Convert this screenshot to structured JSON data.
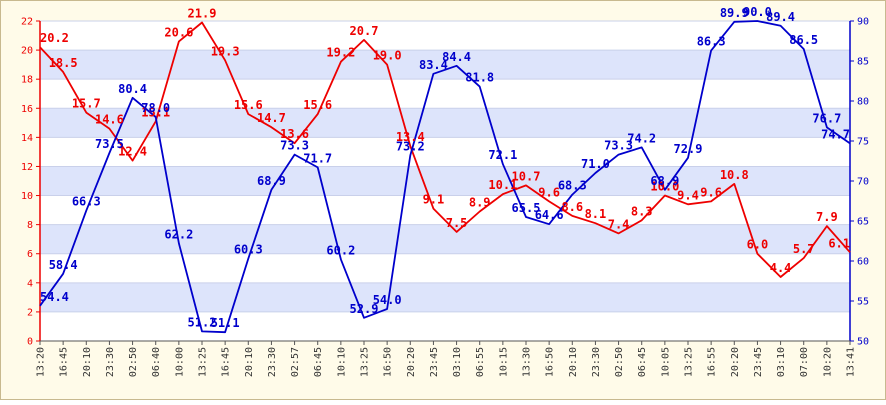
{
  "chart_data": {
    "type": "line",
    "title": "",
    "grid": true,
    "background_bands": [
      "#ffffff",
      "#dde4fb"
    ],
    "x": [
      "13:20",
      "16:45",
      "20:10",
      "23:30",
      "02:50",
      "06:40",
      "10:00",
      "13:25",
      "16:45",
      "20:10",
      "23:30",
      "02:57",
      "06:45",
      "10:10",
      "13:25",
      "16:50",
      "20:20",
      "23:45",
      "03:10",
      "06:55",
      "10:15",
      "13:30",
      "16:50",
      "20:10",
      "23:30",
      "02:50",
      "06:45",
      "10:05",
      "13:25",
      "16:55",
      "20:20",
      "23:45",
      "03:10",
      "07:00",
      "10:20",
      "13:41"
    ],
    "axes": {
      "left": {
        "ylim": [
          0,
          22
        ],
        "ticks": [
          "0",
          "2",
          "4",
          "6",
          "8",
          "10",
          "12",
          "14",
          "16",
          "18",
          "20",
          "22"
        ],
        "color": "#ee0000"
      },
      "right": {
        "ylim": [
          50,
          90
        ],
        "ticks": [
          "50",
          "55",
          "60",
          "65",
          "70",
          "75",
          "80",
          "85",
          "90"
        ],
        "color": "#0000cc"
      }
    },
    "series": [
      {
        "axis": "left",
        "color": "#ee0000",
        "values": [
          20.2,
          18.5,
          15.7,
          14.6,
          12.4,
          15.1,
          20.6,
          21.9,
          19.3,
          15.6,
          14.7,
          13.6,
          15.6,
          19.2,
          20.7,
          19.0,
          13.4,
          9.1,
          7.5,
          8.9,
          10.1,
          10.7,
          9.6,
          8.6,
          8.1,
          7.4,
          8.3,
          10.0,
          9.4,
          9.6,
          10.8,
          6.0,
          4.4,
          5.7,
          7.9,
          6.1
        ],
        "labels": [
          "20.2",
          "18.5",
          "15.7",
          "14.6",
          "12.4",
          "15.1",
          "20.6",
          "21.9",
          "19.3",
          "15.6",
          "14.7",
          "13.6",
          "15.6",
          "19.2",
          "20.7",
          "19.0",
          "13.4",
          "9.1",
          "7.5",
          "8.9",
          "10.1",
          "10.7",
          "9.6",
          "8.6",
          "8.1",
          "7.4",
          "8.3",
          "10.0",
          "9.4",
          "9.6",
          "10.8",
          "6.0",
          "4.4",
          "5.7",
          "7.9",
          "6.1"
        ]
      },
      {
        "axis": "right",
        "color": "#0000cc",
        "values": [
          54.4,
          58.4,
          66.3,
          73.5,
          80.4,
          78.0,
          62.2,
          51.2,
          51.1,
          60.3,
          68.9,
          73.3,
          71.7,
          60.2,
          52.9,
          54.0,
          73.2,
          83.4,
          84.4,
          81.8,
          72.1,
          65.5,
          64.6,
          68.3,
          71.0,
          73.3,
          74.2,
          68.9,
          72.9,
          86.3,
          89.9,
          90.0,
          89.4,
          86.5,
          76.7,
          74.7
        ],
        "labels": [
          "54.4",
          "58.4",
          "66.3",
          "73.5",
          "80.4",
          "78.0",
          "62.2",
          "51.2",
          "51.1",
          "60.3",
          "68.9",
          "73.3",
          "71.7",
          "60.2",
          "52.9",
          "54.0",
          "73.2",
          "83.4",
          "84.4",
          "81.8",
          "72.1",
          "65.5",
          "64.6",
          "68.3",
          "71.0",
          "73.3",
          "74.2",
          "68.9",
          "72.9",
          "86.3",
          "89.9",
          "90.0",
          "89.4",
          "86.5",
          "76.7",
          "74.7"
        ]
      }
    ]
  }
}
